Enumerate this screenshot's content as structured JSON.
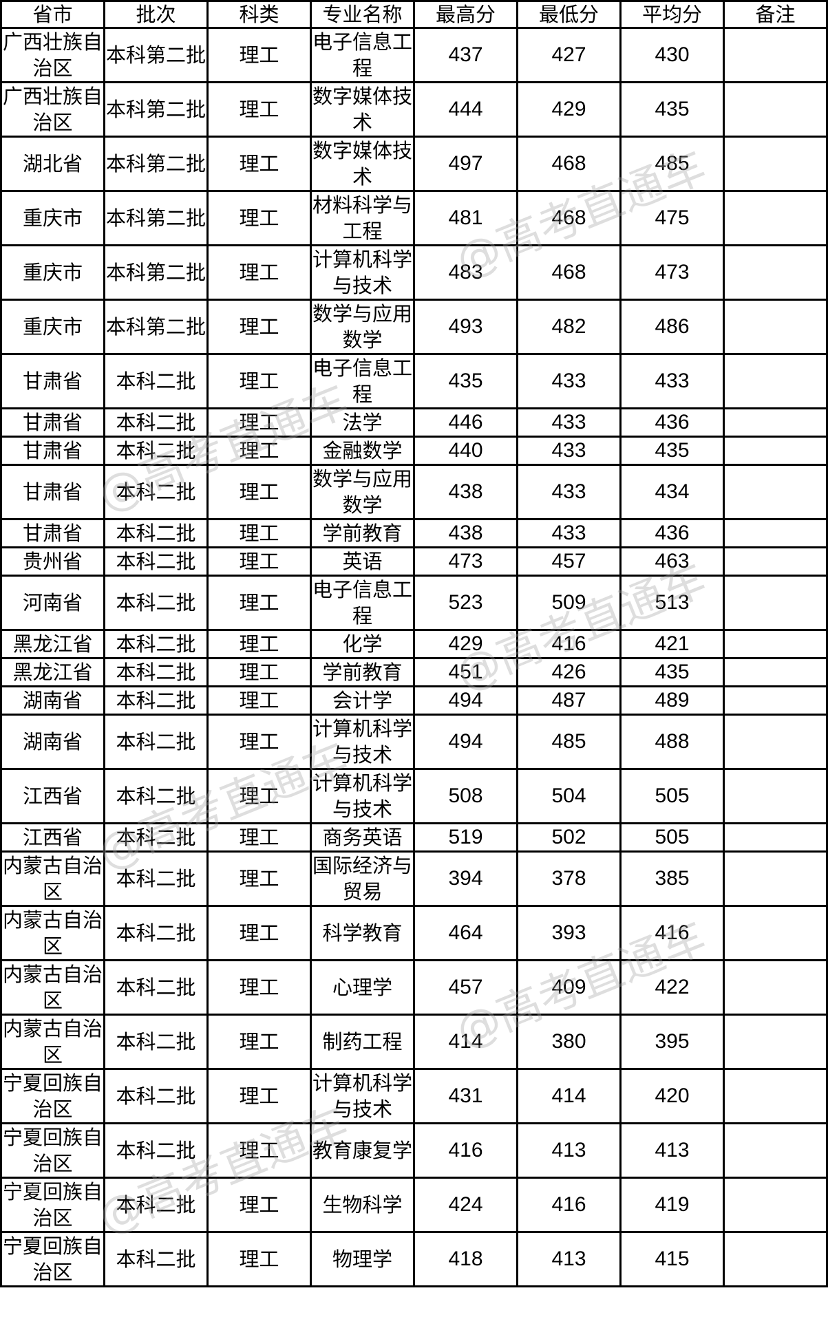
{
  "table": {
    "headers": [
      "省市",
      "批次",
      "科类",
      "专业名称",
      "最高分",
      "最低分",
      "平均分",
      "备注"
    ],
    "rows": [
      {
        "province": "广西壮族自治区",
        "batch": "本科第二批",
        "category": "理工",
        "major": "电子信息工程",
        "max": "437",
        "min": "427",
        "avg": "430",
        "note": "",
        "lines": 2
      },
      {
        "province": "广西壮族自治区",
        "batch": "本科第二批",
        "category": "理工",
        "major": "数字媒体技术",
        "max": "444",
        "min": "429",
        "avg": "435",
        "note": "",
        "lines": 2
      },
      {
        "province": "湖北省",
        "batch": "本科第二批",
        "category": "理工",
        "major": "数字媒体技术",
        "max": "497",
        "min": "468",
        "avg": "485",
        "note": "",
        "lines": 2
      },
      {
        "province": "重庆市",
        "batch": "本科第二批",
        "category": "理工",
        "major": "材料科学与工程",
        "max": "481",
        "min": "468",
        "avg": "475",
        "note": "",
        "lines": 2
      },
      {
        "province": "重庆市",
        "batch": "本科第二批",
        "category": "理工",
        "major": "计算机科学与技术",
        "max": "483",
        "min": "468",
        "avg": "473",
        "note": "",
        "lines": 2
      },
      {
        "province": "重庆市",
        "batch": "本科第二批",
        "category": "理工",
        "major": "数学与应用数学",
        "max": "493",
        "min": "482",
        "avg": "486",
        "note": "",
        "lines": 2
      },
      {
        "province": "甘肃省",
        "batch": "本科二批",
        "category": "理工",
        "major": "电子信息工程",
        "max": "435",
        "min": "433",
        "avg": "433",
        "note": "",
        "lines": 2
      },
      {
        "province": "甘肃省",
        "batch": "本科二批",
        "category": "理工",
        "major": "法学",
        "max": "446",
        "min": "433",
        "avg": "436",
        "note": "",
        "lines": 1
      },
      {
        "province": "甘肃省",
        "batch": "本科二批",
        "category": "理工",
        "major": "金融数学",
        "max": "440",
        "min": "433",
        "avg": "435",
        "note": "",
        "lines": 1
      },
      {
        "province": "甘肃省",
        "batch": "本科二批",
        "category": "理工",
        "major": "数学与应用数学",
        "max": "438",
        "min": "433",
        "avg": "434",
        "note": "",
        "lines": 2
      },
      {
        "province": "甘肃省",
        "batch": "本科二批",
        "category": "理工",
        "major": "学前教育",
        "max": "438",
        "min": "433",
        "avg": "436",
        "note": "",
        "lines": 1
      },
      {
        "province": "贵州省",
        "batch": "本科二批",
        "category": "理工",
        "major": "英语",
        "max": "473",
        "min": "457",
        "avg": "463",
        "note": "",
        "lines": 1
      },
      {
        "province": "河南省",
        "batch": "本科二批",
        "category": "理工",
        "major": "电子信息工程",
        "max": "523",
        "min": "509",
        "avg": "513",
        "note": "",
        "lines": 2
      },
      {
        "province": "黑龙江省",
        "batch": "本科二批",
        "category": "理工",
        "major": "化学",
        "max": "429",
        "min": "416",
        "avg": "421",
        "note": "",
        "lines": 1
      },
      {
        "province": "黑龙江省",
        "batch": "本科二批",
        "category": "理工",
        "major": "学前教育",
        "max": "451",
        "min": "426",
        "avg": "435",
        "note": "",
        "lines": 1
      },
      {
        "province": "湖南省",
        "batch": "本科二批",
        "category": "理工",
        "major": "会计学",
        "max": "494",
        "min": "487",
        "avg": "489",
        "note": "",
        "lines": 1
      },
      {
        "province": "湖南省",
        "batch": "本科二批",
        "category": "理工",
        "major": "计算机科学与技术",
        "max": "494",
        "min": "485",
        "avg": "488",
        "note": "",
        "lines": 2
      },
      {
        "province": "江西省",
        "batch": "本科二批",
        "category": "理工",
        "major": "计算机科学与技术",
        "max": "508",
        "min": "504",
        "avg": "505",
        "note": "",
        "lines": 2
      },
      {
        "province": "江西省",
        "batch": "本科二批",
        "category": "理工",
        "major": "商务英语",
        "max": "519",
        "min": "502",
        "avg": "505",
        "note": "",
        "lines": 1
      },
      {
        "province": "内蒙古自治区",
        "batch": "本科二批",
        "category": "理工",
        "major": "国际经济与贸易",
        "max": "394",
        "min": "378",
        "avg": "385",
        "note": "",
        "lines": 2
      },
      {
        "province": "内蒙古自治区",
        "batch": "本科二批",
        "category": "理工",
        "major": "科学教育",
        "max": "464",
        "min": "393",
        "avg": "416",
        "note": "",
        "lines": 2
      },
      {
        "province": "内蒙古自治区",
        "batch": "本科二批",
        "category": "理工",
        "major": "心理学",
        "max": "457",
        "min": "409",
        "avg": "422",
        "note": "",
        "lines": 2
      },
      {
        "province": "内蒙古自治区",
        "batch": "本科二批",
        "category": "理工",
        "major": "制药工程",
        "max": "414",
        "min": "380",
        "avg": "395",
        "note": "",
        "lines": 2
      },
      {
        "province": "宁夏回族自治区",
        "batch": "本科二批",
        "category": "理工",
        "major": "计算机科学与技术",
        "max": "431",
        "min": "414",
        "avg": "420",
        "note": "",
        "lines": 2
      },
      {
        "province": "宁夏回族自治区",
        "batch": "本科二批",
        "category": "理工",
        "major": "教育康复学",
        "max": "416",
        "min": "413",
        "avg": "413",
        "note": "",
        "lines": 2
      },
      {
        "province": "宁夏回族自治区",
        "batch": "本科二批",
        "category": "理工",
        "major": "生物科学",
        "max": "424",
        "min": "416",
        "avg": "419",
        "note": "",
        "lines": 2
      },
      {
        "province": "宁夏回族自治区",
        "batch": "本科二批",
        "category": "理工",
        "major": "物理学",
        "max": "418",
        "min": "413",
        "avg": "415",
        "note": "",
        "lines": 2
      }
    ]
  },
  "watermark": "@高考直通车"
}
